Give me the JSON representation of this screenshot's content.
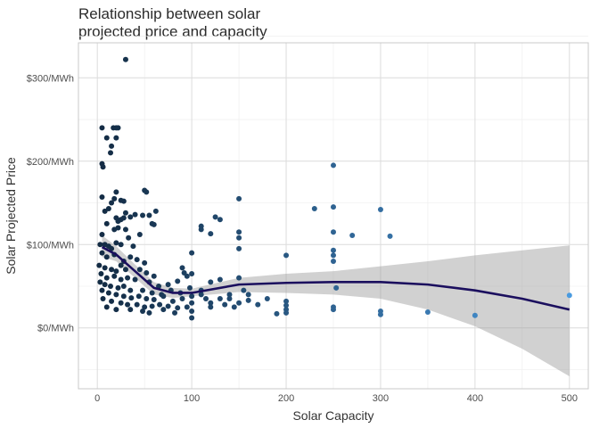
{
  "chart_data": {
    "type": "scatter",
    "title_lines": [
      "Relationship between solar",
      "projected price and capacity"
    ],
    "xlabel": "Solar Capacity",
    "ylabel": "Solar Projected Price",
    "xlim": [
      -20,
      520
    ],
    "ylim": [
      -73,
      342
    ],
    "xticks": [
      {
        "v": 0,
        "label": "0"
      },
      {
        "v": 100,
        "label": "100"
      },
      {
        "v": 200,
        "label": "200"
      },
      {
        "v": 300,
        "label": "300"
      },
      {
        "v": 400,
        "label": "400"
      },
      {
        "v": 500,
        "label": "500"
      }
    ],
    "yticks": [
      {
        "v": 0,
        "label": "$0/MWh"
      },
      {
        "v": 100,
        "label": "$100/MWh"
      },
      {
        "v": 200,
        "label": "$200/MWh"
      },
      {
        "v": 300,
        "label": "$300/MWh"
      }
    ],
    "grid": true,
    "color_low": "#132B43",
    "color_high": "#4a9be0",
    "points": [
      [
        30,
        322
      ],
      [
        5,
        240
      ],
      [
        17,
        240
      ],
      [
        20,
        240
      ],
      [
        22,
        240
      ],
      [
        10,
        228
      ],
      [
        20,
        228
      ],
      [
        15,
        218
      ],
      [
        14,
        210
      ],
      [
        5,
        197
      ],
      [
        6,
        193
      ],
      [
        50,
        165
      ],
      [
        52,
        163
      ],
      [
        20,
        163
      ],
      [
        5,
        157
      ],
      [
        18,
        155
      ],
      [
        25,
        153
      ],
      [
        28,
        152
      ],
      [
        48,
        135
      ],
      [
        40,
        136
      ],
      [
        62,
        140
      ],
      [
        15,
        150
      ],
      [
        12,
        143
      ],
      [
        8,
        140
      ],
      [
        30,
        138
      ],
      [
        20,
        132
      ],
      [
        25,
        130
      ],
      [
        22,
        128
      ],
      [
        28,
        132
      ],
      [
        35,
        133
      ],
      [
        55,
        135
      ],
      [
        10,
        125
      ],
      [
        58,
        125
      ],
      [
        60,
        124
      ],
      [
        18,
        118
      ],
      [
        22,
        120
      ],
      [
        30,
        118
      ],
      [
        5,
        112
      ],
      [
        45,
        112
      ],
      [
        33,
        108
      ],
      [
        20,
        102
      ],
      [
        25,
        100
      ],
      [
        8,
        100
      ],
      [
        12,
        98
      ],
      [
        3,
        100
      ],
      [
        15,
        95
      ],
      [
        38,
        98
      ],
      [
        5,
        90
      ],
      [
        10,
        85
      ],
      [
        18,
        88
      ],
      [
        28,
        80
      ],
      [
        35,
        85
      ],
      [
        42,
        82
      ],
      [
        50,
        78
      ],
      [
        25,
        75
      ],
      [
        2,
        75
      ],
      [
        8,
        72
      ],
      [
        15,
        70
      ],
      [
        20,
        68
      ],
      [
        30,
        70
      ],
      [
        45,
        70
      ],
      [
        52,
        66
      ],
      [
        60,
        62
      ],
      [
        4,
        65
      ],
      [
        10,
        60
      ],
      [
        18,
        62
      ],
      [
        25,
        58
      ],
      [
        32,
        60
      ],
      [
        40,
        58
      ],
      [
        55,
        55
      ],
      [
        65,
        50
      ],
      [
        75,
        52
      ],
      [
        85,
        56
      ],
      [
        90,
        72
      ],
      [
        95,
        62
      ],
      [
        92,
        66
      ],
      [
        3,
        55
      ],
      [
        8,
        52
      ],
      [
        14,
        50
      ],
      [
        22,
        48
      ],
      [
        28,
        50
      ],
      [
        35,
        45
      ],
      [
        48,
        45
      ],
      [
        58,
        42
      ],
      [
        68,
        40
      ],
      [
        78,
        45
      ],
      [
        88,
        42
      ],
      [
        98,
        48
      ],
      [
        5,
        45
      ],
      [
        12,
        42
      ],
      [
        20,
        40
      ],
      [
        28,
        38
      ],
      [
        36,
        36
      ],
      [
        44,
        38
      ],
      [
        52,
        35
      ],
      [
        60,
        34
      ],
      [
        70,
        38
      ],
      [
        80,
        32
      ],
      [
        90,
        35
      ],
      [
        100,
        38
      ],
      [
        6,
        35
      ],
      [
        15,
        32
      ],
      [
        25,
        30
      ],
      [
        32,
        28
      ],
      [
        42,
        28
      ],
      [
        50,
        25
      ],
      [
        58,
        26
      ],
      [
        66,
        28
      ],
      [
        75,
        26
      ],
      [
        85,
        24
      ],
      [
        95,
        25
      ],
      [
        100,
        20
      ],
      [
        10,
        25
      ],
      [
        20,
        22
      ],
      [
        35,
        22
      ],
      [
        48,
        20
      ],
      [
        55,
        18
      ],
      [
        70,
        22
      ],
      [
        82,
        18
      ],
      [
        100,
        12
      ],
      [
        100,
        30
      ],
      [
        100,
        65
      ],
      [
        100,
        90
      ],
      [
        110,
        122
      ],
      [
        110,
        118
      ],
      [
        110,
        40
      ],
      [
        110,
        45
      ],
      [
        115,
        35
      ],
      [
        120,
        25
      ],
      [
        120,
        30
      ],
      [
        120,
        55
      ],
      [
        125,
        133
      ],
      [
        130,
        130
      ],
      [
        120,
        113
      ],
      [
        130,
        35
      ],
      [
        130,
        58
      ],
      [
        135,
        28
      ],
      [
        140,
        40
      ],
      [
        140,
        35
      ],
      [
        145,
        25
      ],
      [
        150,
        155
      ],
      [
        150,
        115
      ],
      [
        150,
        108
      ],
      [
        150,
        95
      ],
      [
        150,
        60
      ],
      [
        150,
        30
      ],
      [
        155,
        45
      ],
      [
        160,
        33
      ],
      [
        160,
        40
      ],
      [
        170,
        28
      ],
      [
        180,
        35
      ],
      [
        190,
        17
      ],
      [
        200,
        87
      ],
      [
        200,
        32
      ],
      [
        200,
        27
      ],
      [
        200,
        22
      ],
      [
        200,
        18
      ],
      [
        230,
        143
      ],
      [
        250,
        195
      ],
      [
        250,
        145
      ],
      [
        250,
        115
      ],
      [
        250,
        93
      ],
      [
        250,
        87
      ],
      [
        250,
        80
      ],
      [
        253,
        48
      ],
      [
        250,
        25
      ],
      [
        250,
        22
      ],
      [
        270,
        111
      ],
      [
        300,
        142
      ],
      [
        310,
        110
      ],
      [
        300,
        20
      ],
      [
        300,
        16
      ],
      [
        350,
        19
      ],
      [
        400,
        15
      ],
      [
        500,
        39
      ]
    ],
    "smooth": {
      "x": [
        5,
        20,
        40,
        60,
        80,
        100,
        150,
        200,
        250,
        300,
        350,
        400,
        450,
        500
      ],
      "y": [
        97,
        88,
        68,
        48,
        42,
        42,
        52,
        54,
        55,
        55,
        52,
        45,
        35,
        22
      ],
      "upper": [
        111,
        98,
        76,
        55,
        48,
        47,
        60,
        65,
        68,
        74,
        80,
        87,
        93,
        99
      ],
      "lower": [
        85,
        80,
        60,
        40,
        36,
        38,
        43,
        42,
        40,
        35,
        22,
        2,
        -25,
        -58
      ]
    }
  }
}
